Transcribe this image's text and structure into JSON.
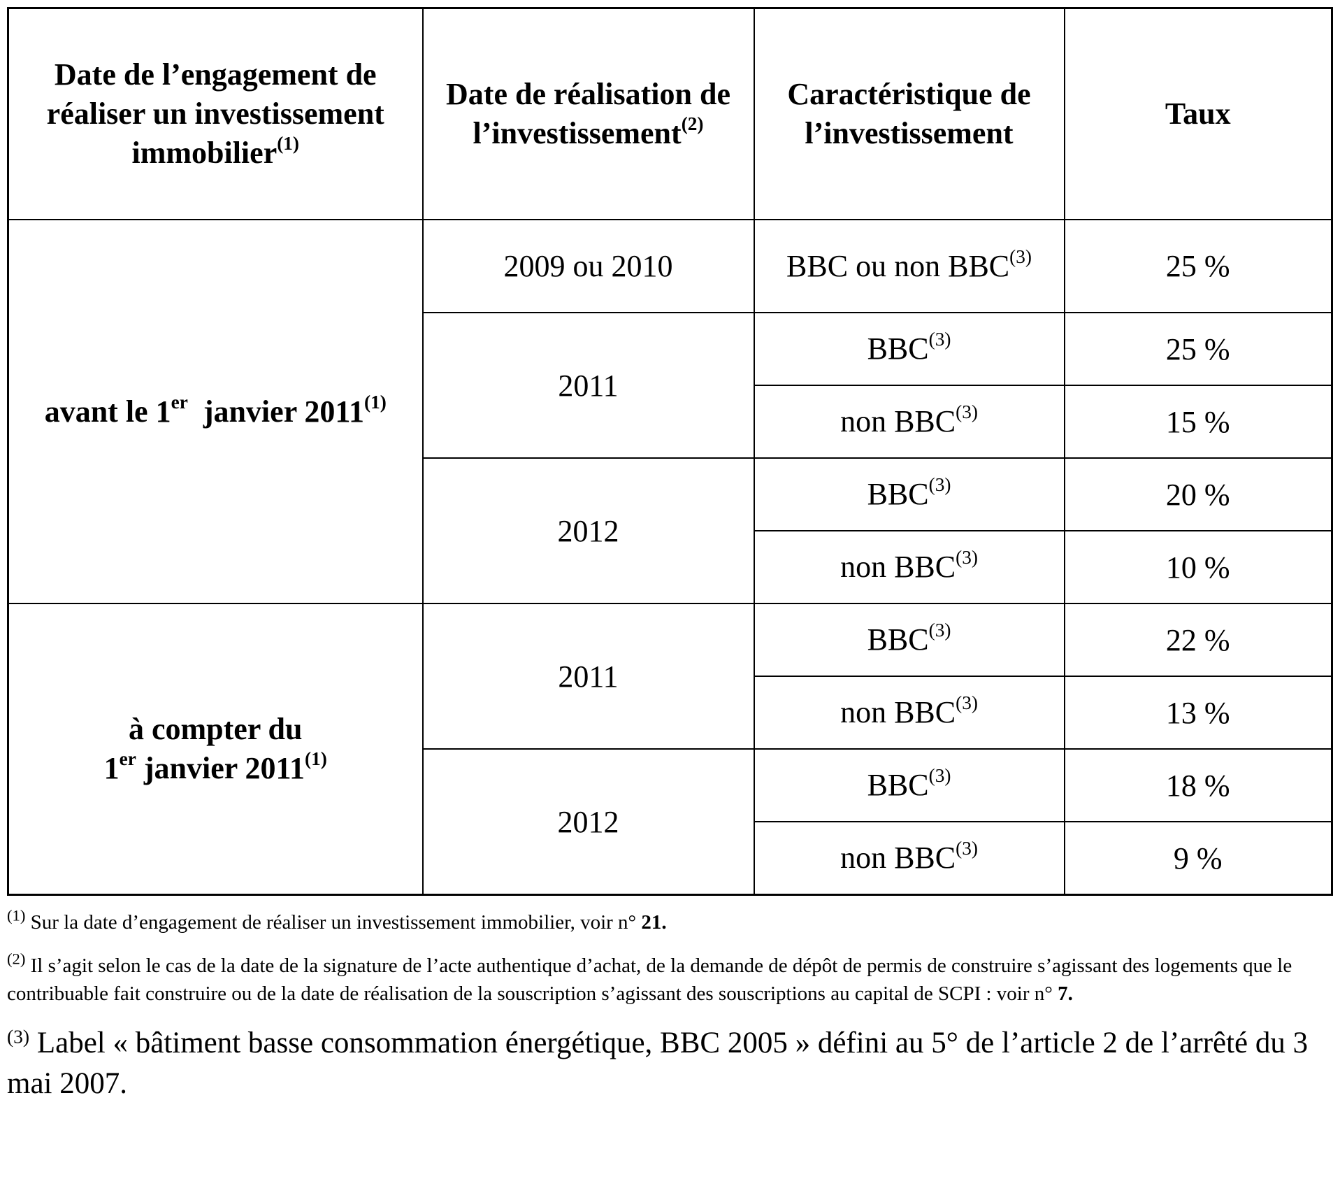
{
  "table": {
    "headers": {
      "engagement": "Date de l’engagement de réaliser un investissement immobilier",
      "engagement_note": "(1)",
      "realisation": "Date de réalisation de l’investissement",
      "realisation_note": "(2)",
      "caracteristique": "Caractéristique de l’investissement",
      "taux": "Taux"
    },
    "groups": [
      {
        "label_a": "avant le 1",
        "label_sup": "er",
        "label_b": "  janvier 2011",
        "label_note": "(1)",
        "years": [
          {
            "year": "2009 ou 2010",
            "rows": [
              {
                "caracteristique": "BBC ou non BBC",
                "note": "(3)",
                "taux": "25 %"
              }
            ]
          },
          {
            "year": "2011",
            "rows": [
              {
                "caracteristique": "BBC",
                "note": "(3)",
                "taux": "25 %"
              },
              {
                "caracteristique": "non BBC",
                "note": "(3)",
                "taux": "15 %"
              }
            ]
          },
          {
            "year": "2012",
            "rows": [
              {
                "caracteristique": "BBC",
                "note": "(3)",
                "taux": "20 %"
              },
              {
                "caracteristique": "non BBC",
                "note": "(3)",
                "taux": "10 %"
              }
            ]
          }
        ]
      },
      {
        "label_a": "à compter du",
        "label_sup": "er",
        "label_pre": "1",
        "label_b": " janvier 2011",
        "label_note": "(1)",
        "years": [
          {
            "year": "2011",
            "rows": [
              {
                "caracteristique": "BBC",
                "note": "(3)",
                "taux": "22 %"
              },
              {
                "caracteristique": "non BBC",
                "note": "(3)",
                "taux": "13 %"
              }
            ]
          },
          {
            "year": "2012",
            "rows": [
              {
                "caracteristique": "BBC",
                "note": "(3)",
                "taux": "18 %"
              },
              {
                "caracteristique": "non BBC",
                "note": "(3)",
                "taux": "9 %"
              }
            ]
          }
        ]
      }
    ]
  },
  "footnotes": [
    {
      "marker": "(1)",
      "text": "Sur la date d’engagement de réaliser un investissement immobilier, voir n° ",
      "ref": "21."
    },
    {
      "marker": "(2)",
      "text": "Il s’agit selon le cas de la date de la signature de l’acte authentique d’achat, de la demande de dépôt de permis de construire s’agissant des logements que le contribuable fait construire ou de la date de réalisation de la souscription s’agissant des souscriptions au capital de SCPI : voir n° ",
      "ref": "7."
    },
    {
      "marker": "(3)",
      "text": "Label « bâtiment basse consommation énergétique, BBC 2005 » défini au 5° de l’article 2 de l’arrêté du 3 mai 2007."
    }
  ]
}
